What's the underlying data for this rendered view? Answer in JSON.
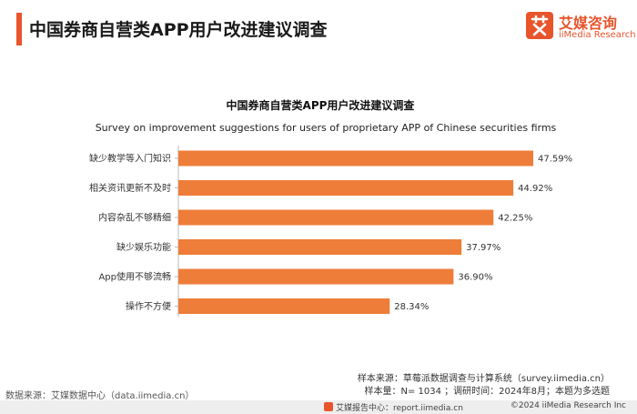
{
  "header": {
    "title": "中国券商自营类APP用户改进建议调查",
    "logo_cn": "艾媒咨询",
    "logo_en": "iiMedia Research",
    "accent_color": "#e8542c"
  },
  "chart_data": {
    "type": "bar",
    "orientation": "horizontal",
    "title": "中国券商自营类APP用户改进建议调查",
    "subtitle": "Survey on improvement suggestions for users of proprietary APP of Chinese securities firms",
    "categories": [
      "缺少教学等入门知识",
      "相关资讯更新不及时",
      "内容杂乱不够精细",
      "缺少娱乐功能",
      "App使用不够流畅",
      "操作不方便"
    ],
    "values": [
      47.59,
      44.92,
      42.25,
      37.97,
      36.9,
      28.34
    ],
    "value_labels": [
      "47.59%",
      "44.92%",
      "42.25%",
      "37.97%",
      "36.90%",
      "28.34%"
    ],
    "unit": "%",
    "xlim": [
      0,
      50
    ],
    "bar_color": "#ee7d3a",
    "grid": false,
    "legend": "none"
  },
  "footer": {
    "data_source": "数据来源：艾媒数据中心（data.iimedia.cn）",
    "sample_source": "样本来源：草莓派数据调查与计算系统（survey.iimedia.cn）",
    "sample_info": "样本量：N= 1034 ；调研时间：2024年8月；本题为多选题",
    "report_site": "艾媒报告中心：report.iimedia.cn",
    "copyright": "©2024  iiMedia Research  Inc"
  }
}
